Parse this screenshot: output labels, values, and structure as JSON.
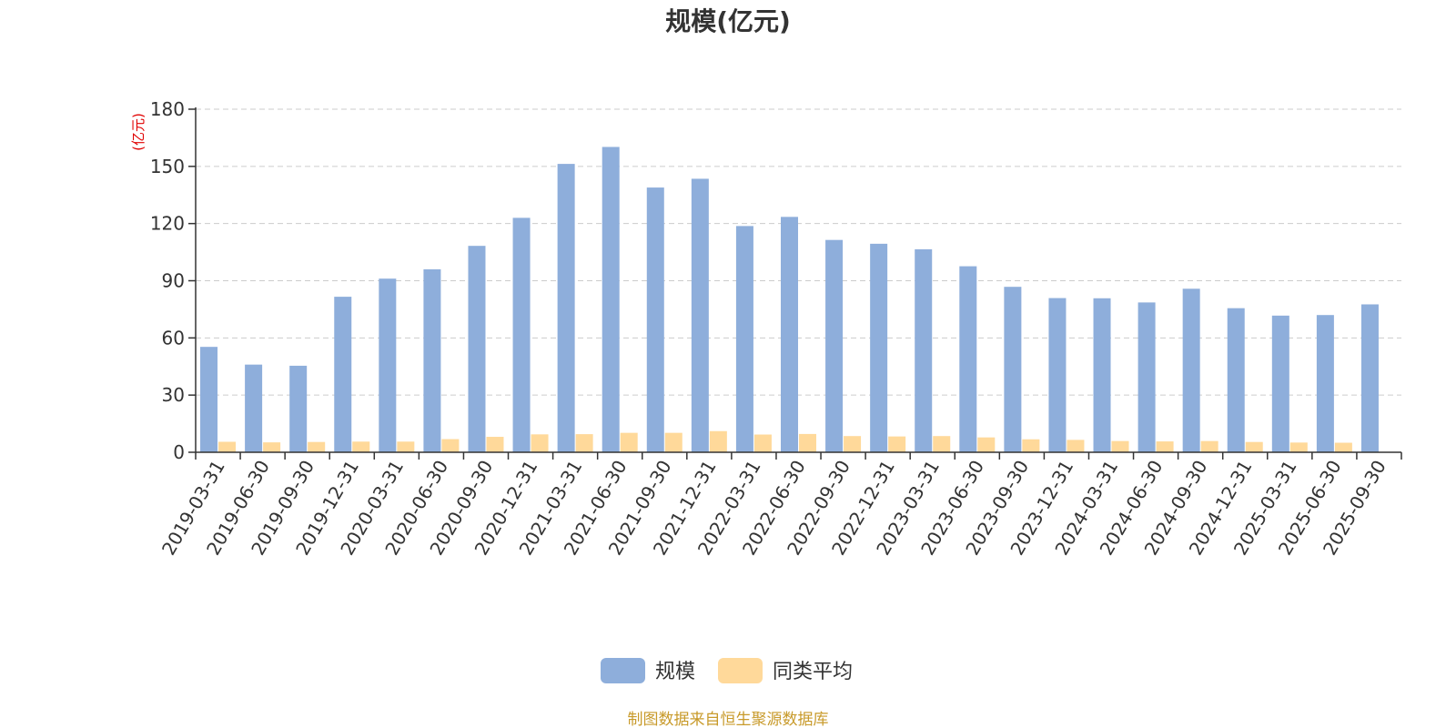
{
  "chart_data": {
    "type": "bar",
    "title": "规模(亿元)",
    "ylabel": "(亿元)",
    "xlabel": "",
    "ylim": [
      0,
      180
    ],
    "yticks": [
      0,
      30,
      60,
      90,
      120,
      150,
      180
    ],
    "grid": true,
    "legend_position": "bottom-center",
    "categories": [
      "2019-03-31",
      "2019-06-30",
      "2019-09-30",
      "2019-12-31",
      "2020-03-31",
      "2020-06-30",
      "2020-09-30",
      "2020-12-31",
      "2021-03-31",
      "2021-06-30",
      "2021-09-30",
      "2021-12-31",
      "2022-03-31",
      "2022-06-30",
      "2022-09-30",
      "2022-12-31",
      "2023-03-31",
      "2023-06-30",
      "2023-09-30",
      "2023-12-31",
      "2024-03-31",
      "2024-06-30",
      "2024-09-30",
      "2024-12-31",
      "2025-03-31",
      "2025-06-30",
      "2025-09-30"
    ],
    "series": [
      {
        "name": "规模",
        "color": "#8eaedb",
        "values": [
          55.3,
          46.0,
          45.4,
          81.6,
          91.1,
          96.0,
          108.3,
          123.0,
          151.3,
          160.2,
          138.9,
          143.5,
          118.7,
          123.5,
          111.4,
          109.4,
          106.5,
          97.6,
          86.8,
          80.9,
          80.8,
          78.6,
          85.8,
          75.6,
          71.7,
          72.0,
          77.6
        ]
      },
      {
        "name": "同类平均",
        "color": "#ffd99a",
        "values": [
          5.5,
          5.2,
          5.4,
          5.6,
          5.6,
          6.9,
          8.1,
          9.4,
          9.5,
          10.2,
          10.2,
          11.1,
          9.3,
          9.6,
          8.5,
          8.3,
          8.5,
          7.8,
          6.8,
          6.5,
          5.9,
          5.7,
          5.9,
          5.4,
          5.1,
          5.0,
          0
        ]
      }
    ]
  },
  "footer": {
    "source": "制图数据来自恒生聚源数据库"
  }
}
